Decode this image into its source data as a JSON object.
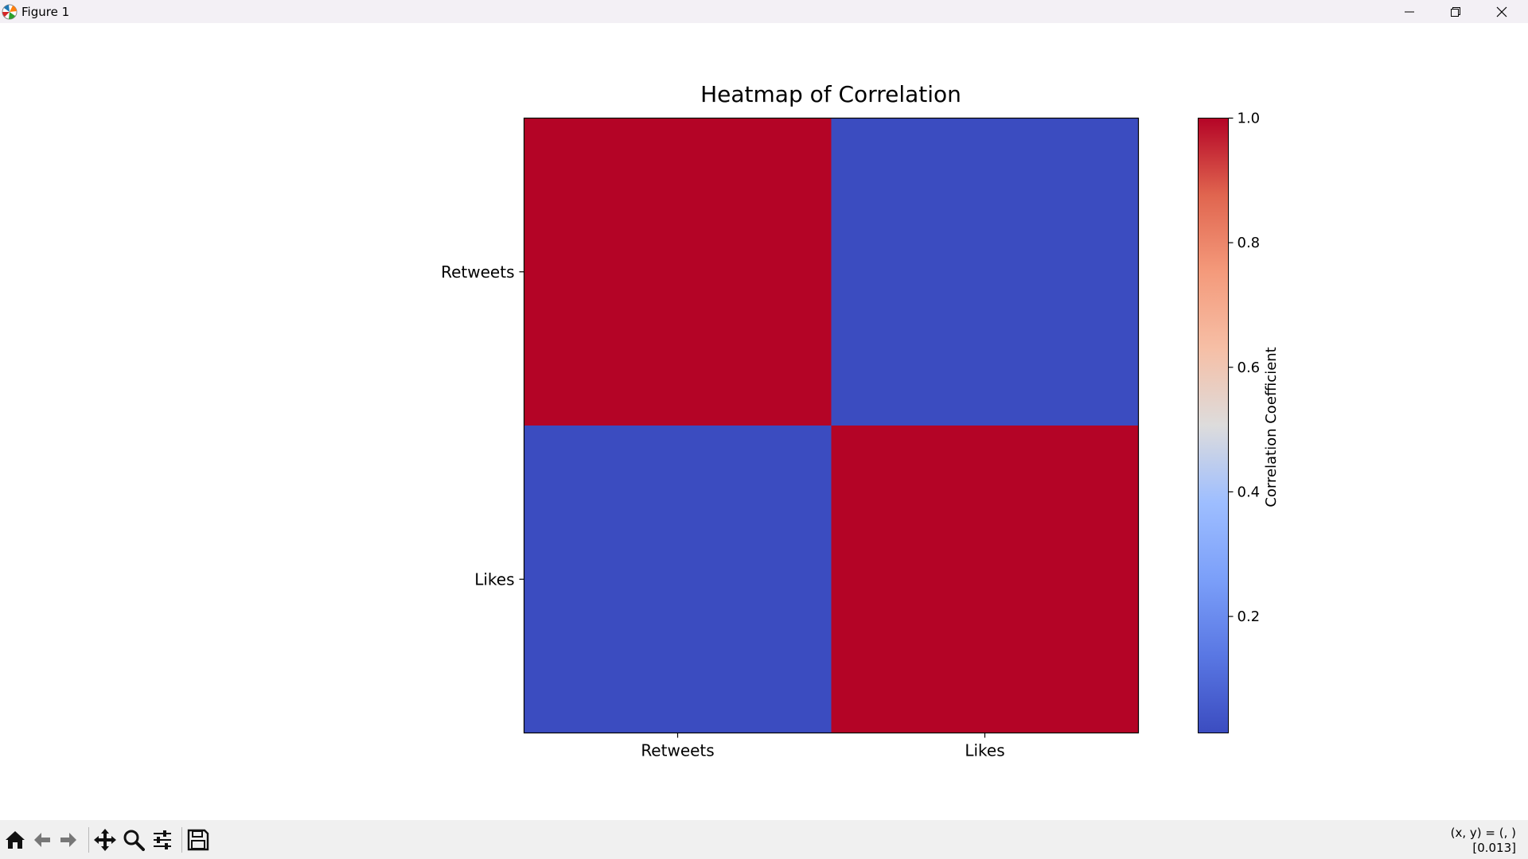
{
  "window": {
    "title": "Figure 1",
    "icons": [
      "matplotlib-icon",
      "minimize-icon",
      "maximize-icon",
      "close-icon"
    ]
  },
  "toolbar": {
    "buttons": [
      "home-icon",
      "back-icon",
      "forward-icon",
      "pan-icon",
      "zoom-icon",
      "configure-subplots-icon",
      "save-icon"
    ],
    "coords_line1": "(x, y) = (, )",
    "coords_line2": "[0.013]"
  },
  "chart_data": {
    "type": "heatmap",
    "title": "Heatmap of Correlation",
    "x_categories": [
      "Retweets",
      "Likes"
    ],
    "y_categories": [
      "Retweets",
      "Likes"
    ],
    "values": [
      [
        1.0,
        0.013
      ],
      [
        0.013,
        1.0
      ]
    ],
    "colormap": "coolwarm",
    "colorbar": {
      "label": "Correlation Coefficient",
      "range": [
        0.013,
        1.0
      ],
      "ticks": [
        0.2,
        0.4,
        0.6,
        0.8,
        1.0
      ],
      "tick_labels": [
        "0.2",
        "0.4",
        "0.6",
        "0.8",
        "1.0"
      ]
    },
    "colors": {
      "high": "#b40426",
      "low": "#3b4cc0"
    }
  }
}
